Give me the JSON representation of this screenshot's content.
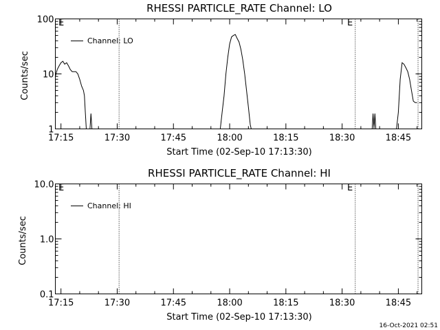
{
  "footer_date": "16-Oct-2021 02:51",
  "chart_data": [
    {
      "type": "line",
      "title": "RHESSI PARTICLE_RATE Channel: LO",
      "xlabel": "Start Time (02-Sep-10 17:13:30)",
      "ylabel": "Counts/sec",
      "y_scale": "log",
      "ylim": [
        1,
        100
      ],
      "xlim": [
        "17:13:30",
        "18:51:15"
      ],
      "x_ticks": [
        "17:15",
        "17:30",
        "17:45",
        "18:00",
        "18:15",
        "18:30",
        "18:45"
      ],
      "y_ticks": [
        "1",
        "10",
        "100"
      ],
      "grid": false,
      "legend_position": "top-left",
      "markers": [
        {
          "label": "E",
          "x": "17:13:30"
        },
        {
          "label": "E",
          "x": "18:33:30"
        }
      ],
      "event_lines": [
        "17:30:30",
        "18:33:30",
        "18:50:15"
      ],
      "series": [
        {
          "name": "Channel: LO",
          "segments": [
            [
              [
                "17:13:30",
                9
              ],
              [
                "17:14:00",
                12
              ],
              [
                "17:14:30",
                14
              ],
              [
                "17:15:00",
                16
              ],
              [
                "17:15:30",
                17
              ],
              [
                "17:16:00",
                15
              ],
              [
                "17:16:30",
                16
              ],
              [
                "17:17:00",
                14
              ],
              [
                "17:17:30",
                12
              ],
              [
                "17:18:00",
                11
              ],
              [
                "17:18:30",
                11
              ],
              [
                "17:19:00",
                11
              ],
              [
                "17:19:30",
                10
              ],
              [
                "17:20:00",
                8
              ],
              [
                "17:20:30",
                6
              ],
              [
                "17:21:00",
                5
              ],
              [
                "17:21:15",
                4
              ],
              [
                "17:21:30",
                2
              ],
              [
                "17:21:45",
                1
              ]
            ],
            [
              [
                "17:22:45",
                1
              ],
              [
                "17:23:00",
                1.9
              ],
              [
                "17:23:15",
                1
              ]
            ],
            [
              [
                "17:57:30",
                1
              ],
              [
                "17:58:00",
                2
              ],
              [
                "17:58:30",
                4
              ],
              [
                "17:59:00",
                10
              ],
              [
                "17:59:30",
                20
              ],
              [
                "18:00:00",
                35
              ],
              [
                "18:00:30",
                47
              ],
              [
                "18:01:00",
                50
              ],
              [
                "18:01:30",
                52
              ],
              [
                "18:02:00",
                44
              ],
              [
                "18:02:30",
                38
              ],
              [
                "18:03:00",
                28
              ],
              [
                "18:03:30",
                18
              ],
              [
                "18:04:00",
                10
              ],
              [
                "18:04:30",
                5
              ],
              [
                "18:05:00",
                2.5
              ],
              [
                "18:05:30",
                1.2
              ],
              [
                "18:05:45",
                1
              ]
            ],
            [
              [
                "18:38:00",
                1
              ],
              [
                "18:38:15",
                1.9
              ],
              [
                "18:38:30",
                1
              ],
              [
                "18:38:45",
                1.9
              ],
              [
                "18:39:00",
                1
              ]
            ],
            [
              [
                "18:44:30",
                1
              ],
              [
                "18:45:00",
                2
              ],
              [
                "18:45:30",
                8
              ],
              [
                "18:46:00",
                16
              ],
              [
                "18:46:30",
                15
              ],
              [
                "18:47:00",
                13
              ],
              [
                "18:47:30",
                11
              ],
              [
                "18:48:00",
                8
              ],
              [
                "18:48:30",
                5
              ],
              [
                "18:49:00",
                3.2
              ],
              [
                "18:49:30",
                3
              ],
              [
                "18:50:00",
                3
              ]
            ]
          ]
        }
      ]
    },
    {
      "type": "line",
      "title": "RHESSI PARTICLE_RATE Channel: HI",
      "xlabel": "Start Time (02-Sep-10 17:13:30)",
      "ylabel": "Counts/sec",
      "y_scale": "log",
      "ylim": [
        0.1,
        10
      ],
      "xlim": [
        "17:13:30",
        "18:51:15"
      ],
      "x_ticks": [
        "17:15",
        "17:30",
        "17:45",
        "18:00",
        "18:15",
        "18:30",
        "18:45"
      ],
      "y_ticks": [
        "0.1",
        "1.0",
        "10.0"
      ],
      "grid": false,
      "legend_position": "top-left",
      "markers": [
        {
          "label": "E",
          "x": "17:13:30"
        },
        {
          "label": "E",
          "x": "18:33:30"
        }
      ],
      "event_lines": [
        "17:30:30",
        "18:33:30",
        "18:50:15"
      ],
      "series": [
        {
          "name": "Channel: HI",
          "segments": []
        }
      ]
    }
  ]
}
